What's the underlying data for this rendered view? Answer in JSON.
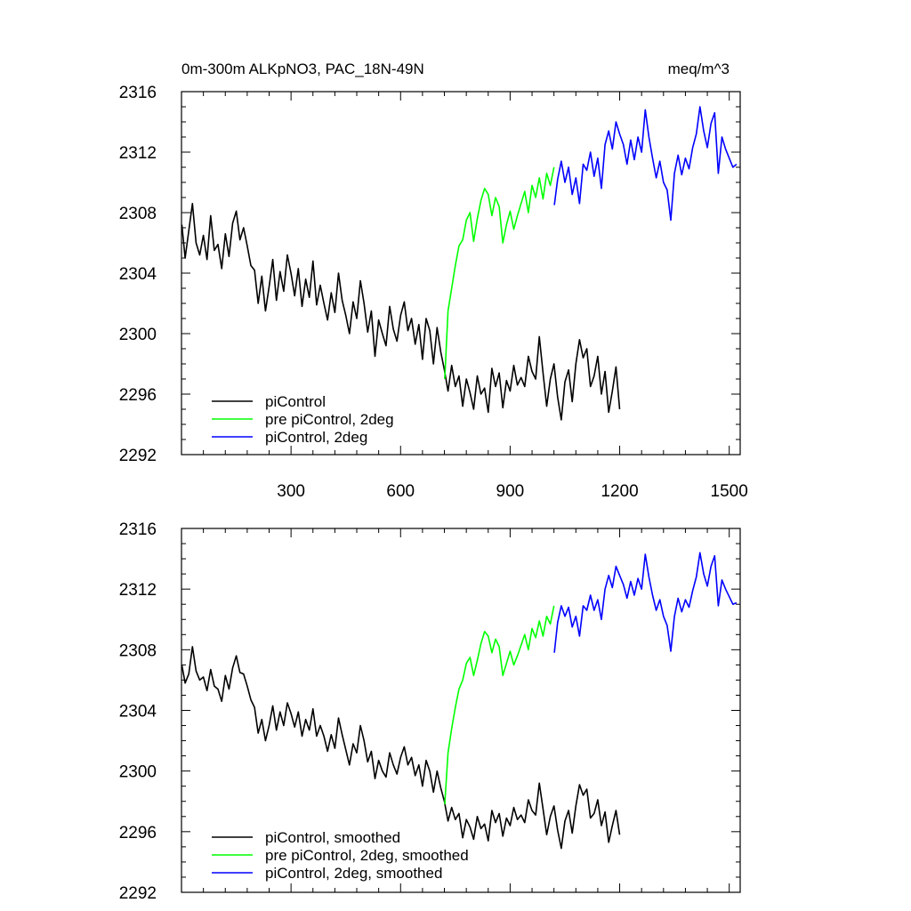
{
  "chart_data": [
    {
      "type": "line",
      "title": "0m-300m ALKpNO3, PAC_18N-49N",
      "units": "meq/m^3",
      "xlim": [
        0,
        1530
      ],
      "ylim": [
        2292,
        2316
      ],
      "xticks": [
        300,
        600,
        900,
        1200,
        1500
      ],
      "xtick_labels": [
        "300",
        "600",
        "900",
        "1200",
        "1500"
      ],
      "yticks": [
        2292,
        2296,
        2300,
        2304,
        2308,
        2312,
        2316
      ],
      "ytick_labels": [
        "2292",
        "2296",
        "2300",
        "2304",
        "2308",
        "2312",
        "2316"
      ],
      "legend_position": "bottom-left",
      "series": [
        {
          "name": "piControl",
          "color": "#000000",
          "x": [
            1,
            10,
            20,
            30,
            40,
            50,
            60,
            70,
            80,
            90,
            100,
            110,
            120,
            130,
            140,
            150,
            160,
            170,
            180,
            190,
            200,
            210,
            220,
            230,
            240,
            250,
            260,
            270,
            280,
            290,
            300,
            310,
            320,
            330,
            340,
            350,
            360,
            370,
            380,
            390,
            400,
            410,
            420,
            430,
            440,
            450,
            460,
            470,
            480,
            490,
            500,
            510,
            520,
            530,
            540,
            550,
            560,
            570,
            580,
            590,
            600,
            610,
            620,
            630,
            640,
            650,
            660,
            670,
            680,
            690,
            700,
            710,
            720,
            730,
            740,
            750,
            760,
            770,
            780,
            790,
            800,
            810,
            820,
            830,
            840,
            850,
            860,
            870,
            880,
            890,
            900,
            910,
            920,
            930,
            940,
            950,
            960,
            970,
            980,
            990,
            1000,
            1010,
            1020,
            1030,
            1040,
            1050,
            1060,
            1070,
            1080,
            1090,
            1100,
            1110,
            1120,
            1130,
            1140,
            1150,
            1160,
            1170,
            1180,
            1190,
            1200
          ],
          "y": [
            2307.2,
            2305.0,
            2306.8,
            2308.6,
            2306.0,
            2305.2,
            2306.5,
            2304.9,
            2307.8,
            2305.5,
            2305.9,
            2304.3,
            2306.6,
            2305.1,
            2307.3,
            2308.1,
            2306.2,
            2307.0,
            2305.8,
            2304.5,
            2304.2,
            2302.0,
            2303.8,
            2301.5,
            2303.1,
            2304.9,
            2302.2,
            2304.1,
            2302.8,
            2305.2,
            2304.0,
            2302.5,
            2304.3,
            2301.8,
            2303.6,
            2302.4,
            2304.8,
            2301.9,
            2303.2,
            2302.0,
            2300.9,
            2302.7,
            2301.4,
            2304.0,
            2302.2,
            2301.2,
            2300.0,
            2302.1,
            2301.0,
            2303.5,
            2302.0,
            2300.1,
            2301.5,
            2298.5,
            2300.9,
            2300.0,
            2299.2,
            2301.8,
            2300.3,
            2299.5,
            2301.2,
            2302.1,
            2300.2,
            2301.0,
            2299.3,
            2300.6,
            2298.3,
            2301.0,
            2300.2,
            2298.0,
            2300.4,
            2298.8,
            2297.6,
            2296.2,
            2297.9,
            2296.5,
            2297.2,
            2295.2,
            2297.0,
            2296.1,
            2295.0,
            2297.2,
            2296.0,
            2296.4,
            2294.8,
            2297.7,
            2296.5,
            2297.4,
            2295.1,
            2296.9,
            2296.2,
            2297.9,
            2296.6,
            2297.1,
            2296.5,
            2298.5,
            2297.5,
            2297.0,
            2299.8,
            2297.4,
            2295.2,
            2297.0,
            2298.0,
            2295.8,
            2294.3,
            2296.8,
            2297.6,
            2295.5,
            2298.0,
            2299.6,
            2298.4,
            2299.0,
            2296.5,
            2297.2,
            2298.5,
            2296.0,
            2297.5,
            2294.8,
            2296.2,
            2297.8,
            2295.0
          ]
        },
        {
          "name": "pre piControl, 2deg",
          "color": "#00ff00",
          "x": [
            721,
            730,
            740,
            750,
            760,
            770,
            780,
            790,
            800,
            810,
            820,
            830,
            840,
            850,
            860,
            870,
            880,
            890,
            900,
            910,
            920,
            930,
            940,
            950,
            960,
            970,
            980,
            990,
            1000,
            1010,
            1020
          ],
          "y": [
            2297.0,
            2301.5,
            2303.0,
            2304.5,
            2305.8,
            2306.2,
            2307.5,
            2308.0,
            2306.1,
            2307.6,
            2308.8,
            2309.6,
            2309.2,
            2307.8,
            2309.0,
            2308.4,
            2306.0,
            2307.2,
            2308.1,
            2306.9,
            2307.8,
            2308.6,
            2309.4,
            2308.0,
            2309.8,
            2309.0,
            2310.3,
            2308.9,
            2310.6,
            2309.8,
            2311.0
          ]
        },
        {
          "name": "piControl, 2deg",
          "color": "#0000ff",
          "x": [
            1021,
            1030,
            1040,
            1050,
            1060,
            1070,
            1080,
            1090,
            1100,
            1110,
            1120,
            1130,
            1140,
            1150,
            1160,
            1170,
            1180,
            1190,
            1200,
            1210,
            1220,
            1230,
            1240,
            1250,
            1260,
            1270,
            1280,
            1290,
            1300,
            1310,
            1320,
            1330,
            1340,
            1350,
            1360,
            1370,
            1380,
            1390,
            1400,
            1410,
            1420,
            1430,
            1440,
            1450,
            1460,
            1470,
            1480,
            1490,
            1500,
            1510,
            1520
          ],
          "y": [
            2308.5,
            2310.2,
            2311.4,
            2310.0,
            2311.0,
            2309.2,
            2310.3,
            2308.6,
            2311.2,
            2310.8,
            2312.0,
            2310.4,
            2311.6,
            2309.6,
            2312.5,
            2313.4,
            2312.2,
            2314.0,
            2313.2,
            2312.5,
            2311.2,
            2312.8,
            2311.5,
            2313.0,
            2312.0,
            2314.8,
            2313.0,
            2311.6,
            2310.3,
            2311.4,
            2310.0,
            2309.5,
            2307.5,
            2310.6,
            2311.8,
            2310.5,
            2311.6,
            2310.9,
            2312.3,
            2313.2,
            2315.0,
            2313.4,
            2312.3,
            2313.9,
            2314.6,
            2310.6,
            2313.0,
            2312.2,
            2311.6,
            2311.0,
            2311.2
          ]
        }
      ],
      "legend": [
        "piControl",
        "pre piControl, 2deg",
        "piControl, 2deg"
      ]
    },
    {
      "type": "line",
      "title": "",
      "xlim": [
        0,
        1530
      ],
      "ylim": [
        2292,
        2316
      ],
      "xticks": [
        300,
        600,
        900,
        1200,
        1500
      ],
      "yticks": [
        2292,
        2296,
        2300,
        2304,
        2308,
        2312,
        2316
      ],
      "ytick_labels": [
        "2292",
        "2296",
        "2300",
        "2304",
        "2308",
        "2312",
        "2316"
      ],
      "legend_position": "bottom-left",
      "series": [
        {
          "name": "piControl, smoothed",
          "color": "#000000",
          "x": [
            1,
            10,
            20,
            30,
            40,
            50,
            60,
            70,
            80,
            90,
            100,
            110,
            120,
            130,
            140,
            150,
            160,
            170,
            180,
            190,
            200,
            210,
            220,
            230,
            240,
            250,
            260,
            270,
            280,
            290,
            300,
            310,
            320,
            330,
            340,
            350,
            360,
            370,
            380,
            390,
            400,
            410,
            420,
            430,
            440,
            450,
            460,
            470,
            480,
            490,
            500,
            510,
            520,
            530,
            540,
            550,
            560,
            570,
            580,
            590,
            600,
            610,
            620,
            630,
            640,
            650,
            660,
            670,
            680,
            690,
            700,
            710,
            720,
            730,
            740,
            750,
            760,
            770,
            780,
            790,
            800,
            810,
            820,
            830,
            840,
            850,
            860,
            870,
            880,
            890,
            900,
            910,
            920,
            930,
            940,
            950,
            960,
            970,
            980,
            990,
            1000,
            1010,
            1020,
            1030,
            1040,
            1050,
            1060,
            1070,
            1080,
            1090,
            1100,
            1110,
            1120,
            1130,
            1140,
            1150,
            1160,
            1170,
            1180,
            1190,
            1200
          ],
          "y": [
            2307.0,
            2305.8,
            2306.4,
            2308.2,
            2306.6,
            2306.0,
            2306.2,
            2305.3,
            2306.7,
            2305.6,
            2305.4,
            2304.6,
            2306.3,
            2305.4,
            2306.8,
            2307.6,
            2306.5,
            2306.4,
            2305.6,
            2304.7,
            2304.2,
            2302.5,
            2303.4,
            2302.0,
            2303.0,
            2304.3,
            2302.7,
            2303.9,
            2303.0,
            2304.5,
            2303.8,
            2302.9,
            2303.9,
            2302.3,
            2303.4,
            2302.7,
            2304.1,
            2302.3,
            2303.0,
            2302.3,
            2301.3,
            2302.4,
            2301.5,
            2303.5,
            2302.4,
            2301.4,
            2300.4,
            2301.8,
            2301.2,
            2303.0,
            2302.0,
            2300.6,
            2301.3,
            2299.5,
            2300.7,
            2300.0,
            2299.6,
            2301.2,
            2300.4,
            2299.8,
            2300.9,
            2301.6,
            2300.4,
            2300.9,
            2299.7,
            2300.4,
            2299.0,
            2300.7,
            2300.0,
            2298.6,
            2300.0,
            2298.9,
            2298.0,
            2296.7,
            2297.6,
            2296.8,
            2297.2,
            2295.6,
            2296.8,
            2296.3,
            2295.5,
            2297.0,
            2296.2,
            2296.5,
            2295.4,
            2297.4,
            2296.6,
            2297.2,
            2295.7,
            2296.9,
            2296.4,
            2297.6,
            2296.8,
            2297.1,
            2296.6,
            2298.1,
            2297.4,
            2297.1,
            2299.2,
            2297.5,
            2295.8,
            2297.0,
            2297.7,
            2296.1,
            2294.9,
            2296.7,
            2297.4,
            2295.9,
            2297.7,
            2299.1,
            2298.4,
            2298.8,
            2296.9,
            2297.2,
            2298.1,
            2296.4,
            2297.3,
            2295.3,
            2296.4,
            2297.4,
            2295.8
          ]
        },
        {
          "name": "pre piControl, 2deg, smoothed",
          "color": "#00ff00",
          "x": [
            721,
            730,
            740,
            750,
            760,
            770,
            780,
            790,
            800,
            810,
            820,
            830,
            840,
            850,
            860,
            870,
            880,
            890,
            900,
            910,
            920,
            930,
            940,
            950,
            960,
            970,
            980,
            990,
            1000,
            1010,
            1020
          ],
          "y": [
            2297.8,
            2301.2,
            2302.8,
            2304.2,
            2305.4,
            2306.0,
            2307.1,
            2307.5,
            2306.3,
            2307.3,
            2308.4,
            2309.2,
            2308.9,
            2307.8,
            2308.7,
            2308.2,
            2306.3,
            2307.1,
            2307.9,
            2307.0,
            2307.6,
            2308.3,
            2309.0,
            2308.0,
            2309.4,
            2308.8,
            2309.9,
            2308.9,
            2310.2,
            2309.7,
            2310.9
          ]
        },
        {
          "name": "piControl, 2deg, smoothed",
          "color": "#0000ff",
          "x": [
            1021,
            1030,
            1040,
            1050,
            1060,
            1070,
            1080,
            1090,
            1100,
            1110,
            1120,
            1130,
            1140,
            1150,
            1160,
            1170,
            1180,
            1190,
            1200,
            1210,
            1220,
            1230,
            1240,
            1250,
            1260,
            1270,
            1280,
            1290,
            1300,
            1310,
            1320,
            1330,
            1340,
            1350,
            1360,
            1370,
            1380,
            1390,
            1400,
            1410,
            1420,
            1430,
            1440,
            1450,
            1460,
            1470,
            1480,
            1490,
            1500,
            1510,
            1520
          ],
          "y": [
            2307.8,
            2309.8,
            2310.9,
            2310.2,
            2310.8,
            2309.5,
            2310.2,
            2308.9,
            2310.9,
            2310.6,
            2311.6,
            2310.6,
            2311.3,
            2310.0,
            2312.0,
            2312.9,
            2312.1,
            2313.5,
            2312.9,
            2312.3,
            2311.4,
            2312.5,
            2311.6,
            2312.7,
            2312.0,
            2314.3,
            2312.8,
            2311.6,
            2310.6,
            2311.3,
            2310.2,
            2309.6,
            2307.9,
            2310.2,
            2311.4,
            2310.5,
            2311.3,
            2310.8,
            2311.9,
            2312.8,
            2314.4,
            2313.0,
            2312.2,
            2313.5,
            2314.2,
            2310.9,
            2312.6,
            2312.0,
            2311.5,
            2311.0,
            2311.1
          ]
        }
      ],
      "legend": [
        "piControl, smoothed",
        "pre piControl, 2deg, smoothed",
        "piControl, 2deg, smoothed"
      ]
    }
  ]
}
